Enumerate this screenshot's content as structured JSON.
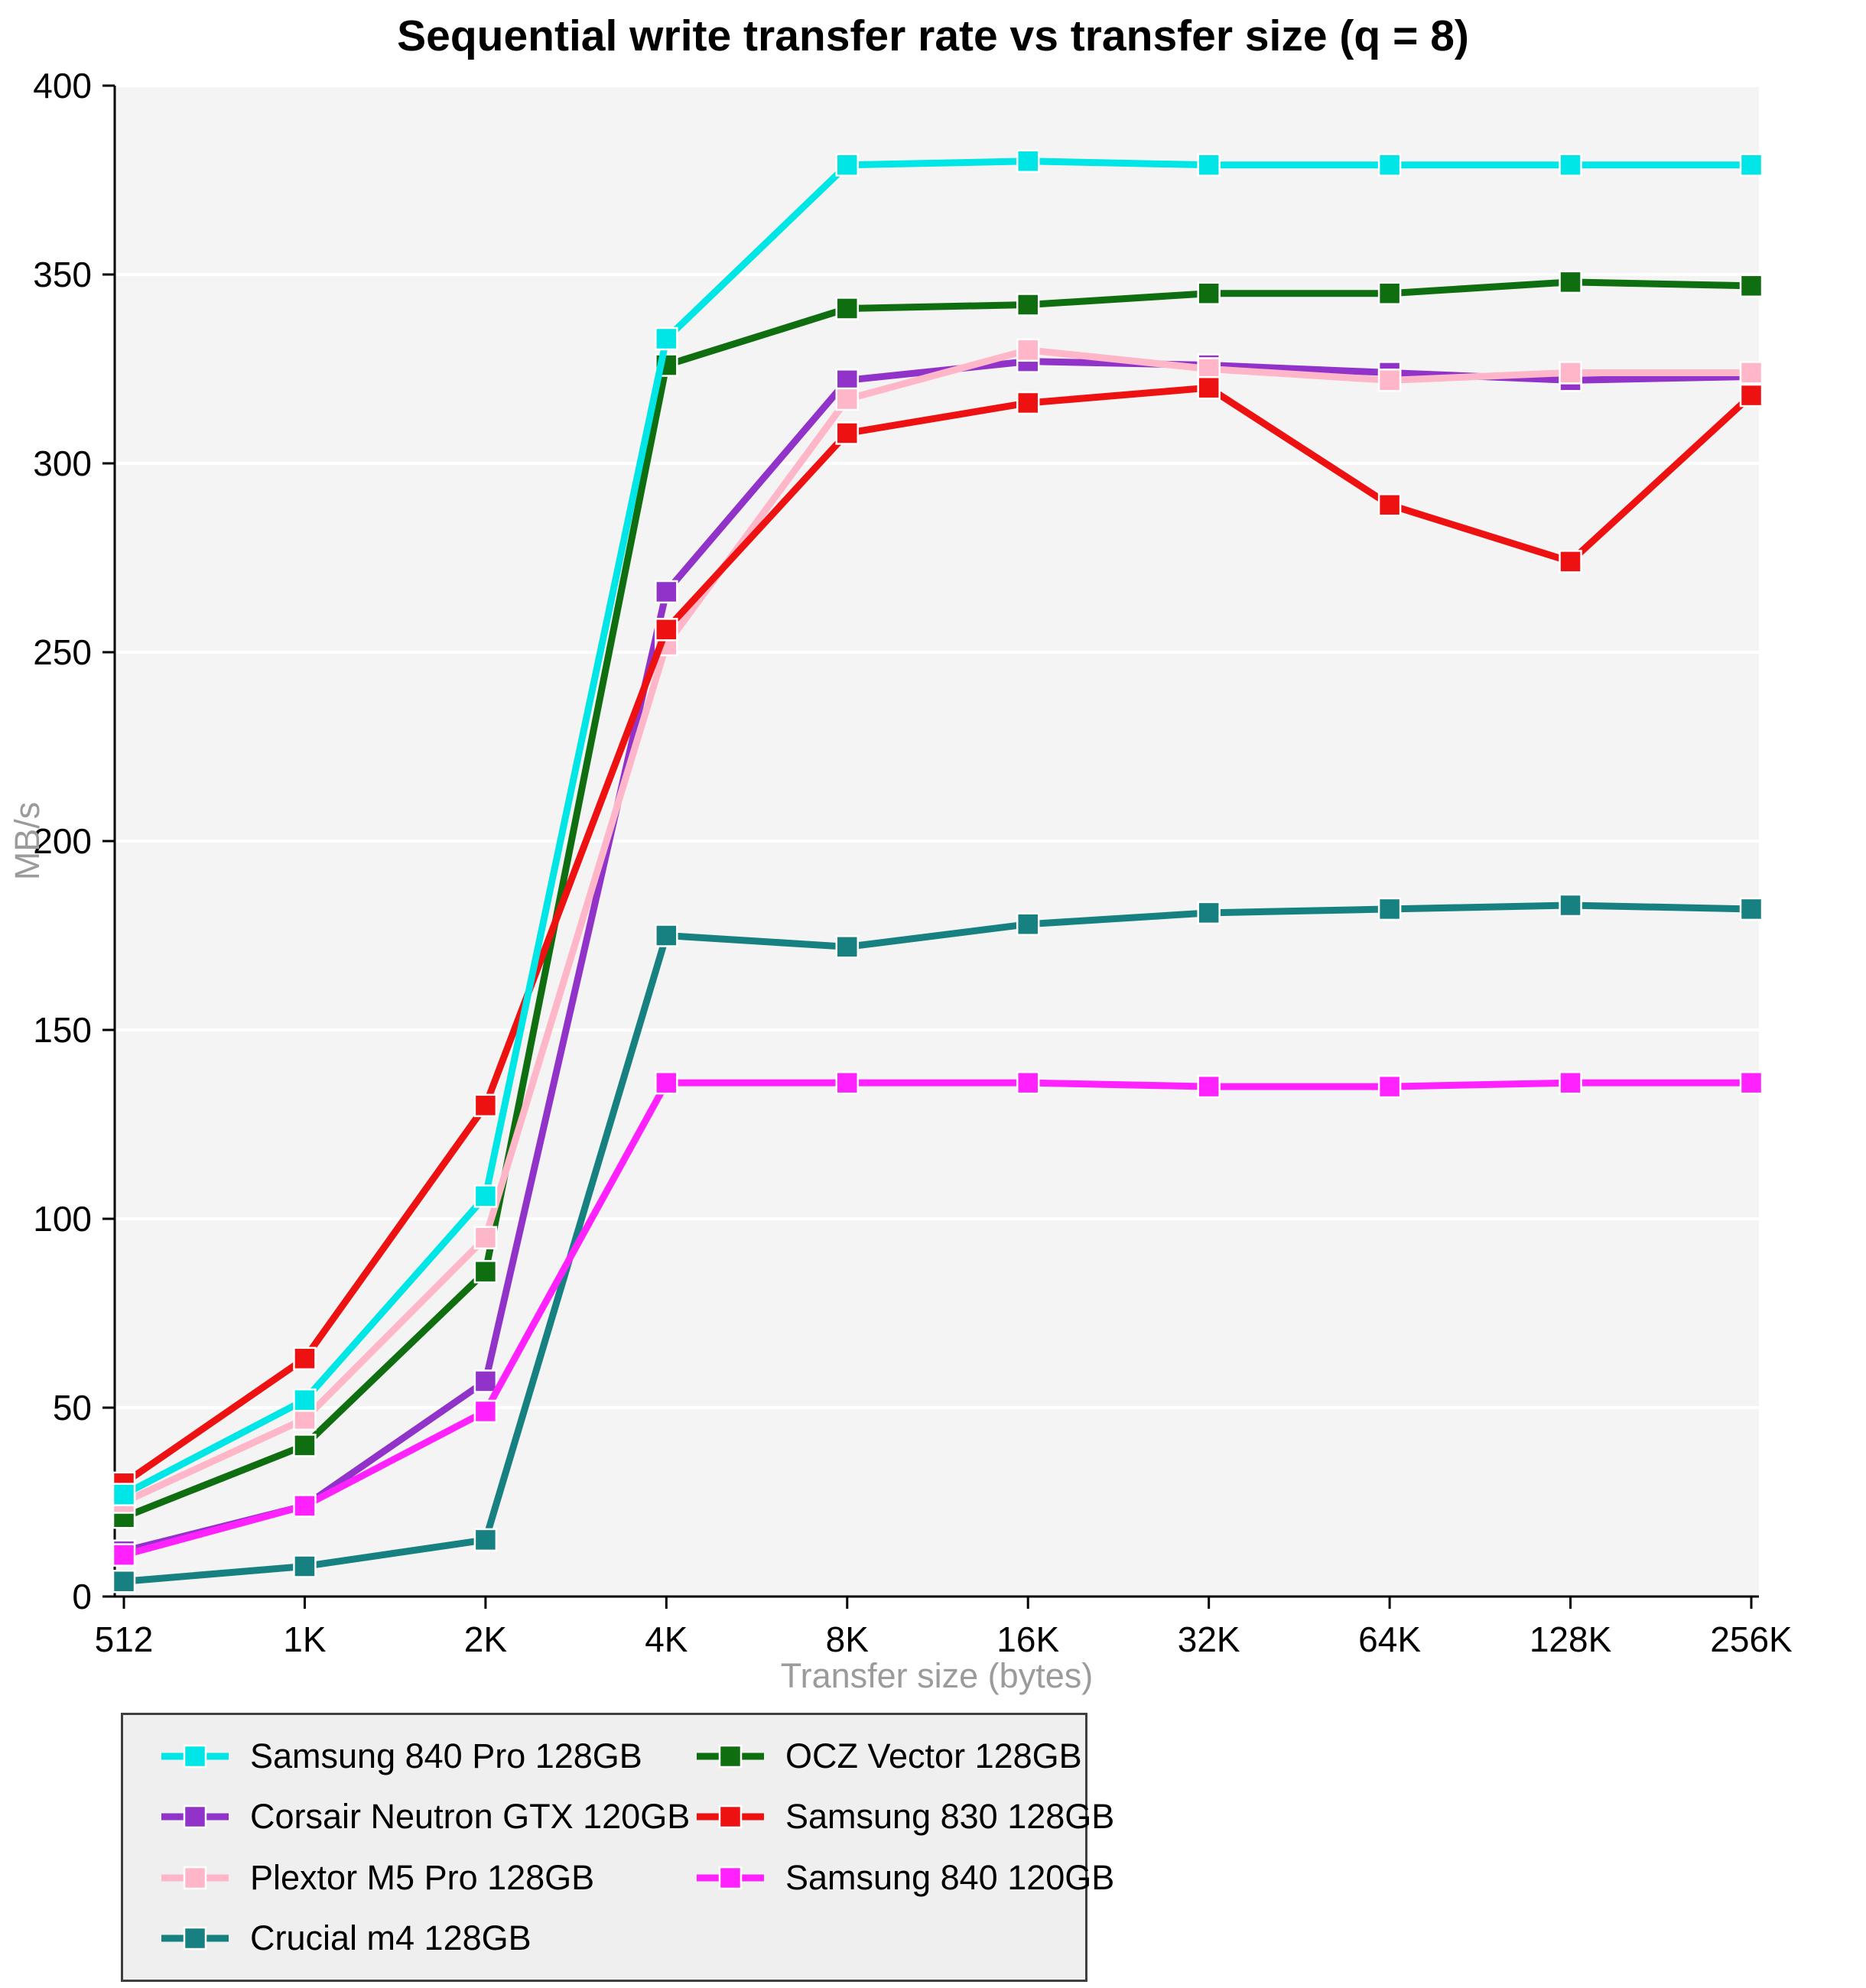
{
  "chart_data": {
    "type": "line",
    "title": "Sequential write transfer rate vs transfer size (q = 8)",
    "xlabel": "Transfer size (bytes)",
    "ylabel": "MB/s",
    "categories": [
      "512",
      "1K",
      "2K",
      "4K",
      "8K",
      "16K",
      "32K",
      "64K",
      "128K",
      "256K"
    ],
    "ylim": [
      0,
      400
    ],
    "ytick_step": 50,
    "yticks": [
      0,
      50,
      100,
      150,
      200,
      250,
      300,
      350,
      400
    ],
    "grid": true,
    "plot_background": "#f4f4f4",
    "gridline_color": "#ffffff",
    "axis_color": "#000000",
    "axis_title_color": "#9b9b9b",
    "legend_position": "bottom",
    "legend_columns": 2,
    "series": [
      {
        "name": "Samsung 840 Pro 128GB",
        "color": "#00E6E6",
        "values": [
          27,
          52,
          106,
          333,
          379,
          380,
          379,
          379,
          379,
          379
        ]
      },
      {
        "name": "Corsair Neutron GTX 120GB",
        "color": "#9133C9",
        "values": [
          12,
          24,
          57,
          266,
          322,
          327,
          326,
          324,
          322,
          323
        ]
      },
      {
        "name": "Plextor M5 Pro 128GB",
        "color": "#FFB6C9",
        "values": [
          25,
          47,
          95,
          252,
          317,
          330,
          325,
          322,
          324,
          324
        ]
      },
      {
        "name": "Crucial m4 128GB",
        "color": "#178080",
        "values": [
          4,
          8,
          15,
          175,
          172,
          178,
          181,
          182,
          183,
          182
        ]
      },
      {
        "name": "OCZ Vector 128GB",
        "color": "#0F6E0F",
        "values": [
          21,
          40,
          86,
          326,
          341,
          342,
          345,
          345,
          348,
          347
        ]
      },
      {
        "name": "Samsung 830 128GB",
        "color": "#EE1111",
        "values": [
          30,
          63,
          130,
          256,
          308,
          316,
          320,
          289,
          274,
          318
        ]
      },
      {
        "name": "Samsung 840 120GB",
        "color": "#FF22FF",
        "values": [
          11,
          24,
          49,
          136,
          136,
          136,
          135,
          135,
          136,
          136
        ]
      }
    ]
  }
}
